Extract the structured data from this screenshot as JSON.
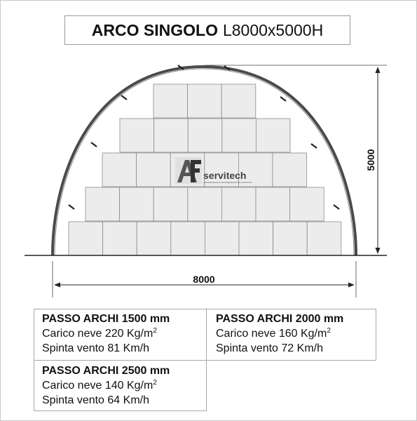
{
  "title": {
    "bold": "ARCO SINGOLO",
    "normal": "L8000x5000H"
  },
  "dimensions": {
    "height_label": "5000",
    "width_label": "8000"
  },
  "logo": {
    "mark": "AF",
    "name": "servitech",
    "tagline": "INTERMODALE E MOVIMENTAZIONE LOGISTICA"
  },
  "colors": {
    "arch": "#4a4a4a",
    "block_fill": "#ececec",
    "block_stroke": "#8c8c8c",
    "dim_line": "#222222"
  },
  "specs": [
    {
      "heading": "PASSO ARCHI 1500 mm",
      "snow_prefix": "Carico neve 220 Kg/m",
      "snow_sup": "2",
      "wind": "Spinta vento 81 Km/h"
    },
    {
      "heading": "PASSO ARCHI 2000 mm",
      "snow_prefix": "Carico neve 160 Kg/m",
      "snow_sup": "2",
      "wind": "Spinta vento 72 Km/h"
    },
    {
      "heading": "PASSO ARCHI 2500 mm",
      "snow_prefix": "Carico neve 140 Kg/m",
      "snow_sup": "2",
      "wind": "Spinta vento 64 Km/h"
    }
  ]
}
